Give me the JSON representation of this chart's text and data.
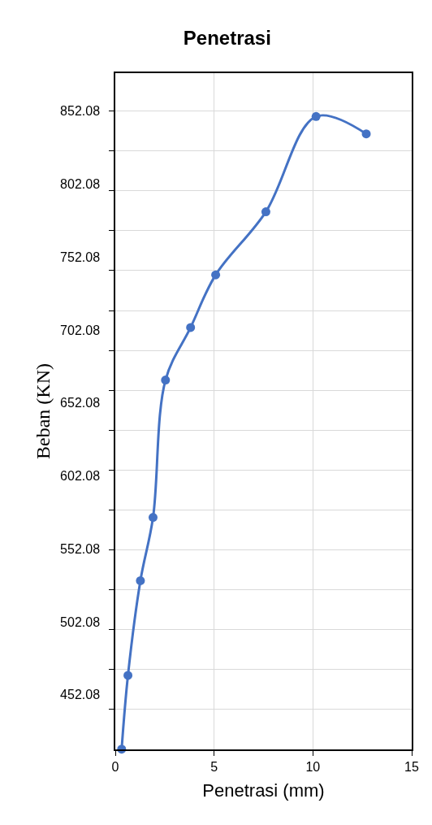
{
  "chart_data": {
    "type": "line",
    "title": "Penetrasi",
    "xlabel": "Penetrasi (mm)",
    "ylabel": "Beban (KN)",
    "x": [
      0.32,
      0.64,
      1.27,
      1.91,
      2.54,
      3.81,
      5.08,
      7.62,
      10.16,
      12.7
    ],
    "series": [
      {
        "color": "#4472c4",
        "values": [
          414.9,
          465.4,
          530.3,
          573.7,
          667.8,
          703.8,
          739.9,
          783.1,
          848.4,
          836.5
        ]
      }
    ],
    "xlim": [
      0,
      15
    ],
    "xticks": [
      0,
      5,
      10,
      15
    ],
    "ylim": [
      414.7,
      878.1
    ],
    "yticks": [
      452.08,
      502.08,
      552.08,
      602.08,
      652.08,
      702.08,
      752.08,
      802.08,
      852.08,
      {
        "value": 442.0,
        "label": null
      },
      {
        "value": 469.4,
        "label": null
      },
      {
        "value": 496.7,
        "label": null
      },
      {
        "value": 524.1,
        "label": null
      },
      {
        "value": 551.4,
        "label": null
      },
      {
        "value": 578.7,
        "label": null
      },
      {
        "value": 606.1,
        "label": null
      },
      {
        "value": 633.4,
        "label": null
      },
      {
        "value": 660.8,
        "label": null
      },
      {
        "value": 688.1,
        "label": null
      },
      {
        "value": 715.4,
        "label": null
      },
      {
        "value": 742.8,
        "label": null
      },
      {
        "value": 770.1,
        "label": null
      },
      {
        "value": 797.5,
        "label": null
      },
      {
        "value": 824.8,
        "label": null
      },
      {
        "value": 852.1,
        "label": null
      }
    ],
    "grid": true,
    "marker": "circle",
    "line_style": "solid"
  }
}
